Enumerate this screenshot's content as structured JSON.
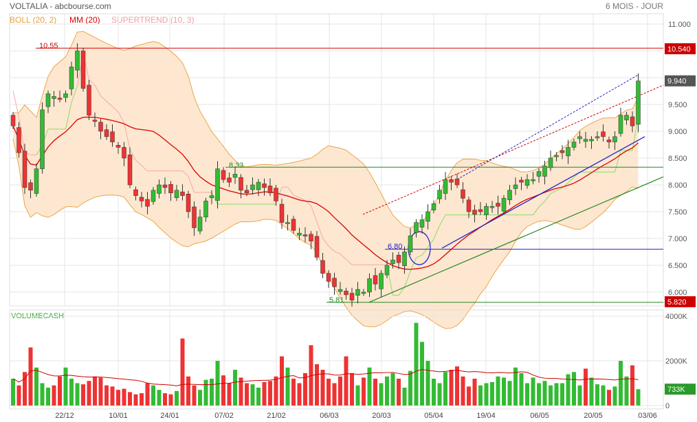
{
  "header": {
    "title": "VOLTALIA - abcbourse.com",
    "period": "6 MOIS - JOUR"
  },
  "legend": [
    {
      "label": "BOLL (20, 2)",
      "color": "#e8a040"
    },
    {
      "label": "MM (20)",
      "color": "#dd0000"
    },
    {
      "label": "SUPERTREND (10, 3)",
      "color": "#f0a0a0"
    }
  ],
  "volume_panel": {
    "label": "VOLUMECASH"
  },
  "colors": {
    "up": "#33bb33",
    "down": "#ee3333",
    "boll_fill": "#fde3c8",
    "boll_line": "#eca548",
    "mm": "#dd0000",
    "supertrend_up": "#88dd66",
    "supertrend_down": "#f4a8a8",
    "grid": "#e6e6e6",
    "hline_red": "#cc0000",
    "hline_green": "#228822",
    "trend_blue": "#2222cc"
  },
  "price_axis": {
    "ticks": [
      "11.000",
      "10.500",
      "10.000",
      "9.500",
      "9.000",
      "8.500",
      "8.000",
      "7.500",
      "7.000",
      "6.500",
      "6.000"
    ],
    "markers": [
      {
        "label": "10.540",
        "value": 10.54,
        "color": "#cc0000"
      },
      {
        "label": "9.940",
        "value": 9.94,
        "color": "#555555"
      },
      {
        "label": "5.820",
        "value": 5.82,
        "color": "#cc0000"
      }
    ]
  },
  "volume_axis": {
    "ticks": [
      "4000K",
      "2000K",
      "0"
    ],
    "marker": {
      "label": "733K",
      "value": 733,
      "color": "#2a9a2a"
    }
  },
  "annotations": {
    "h1": {
      "label": "10.55",
      "value": 10.55
    },
    "h2": {
      "label": "8.33",
      "value": 8.33
    },
    "h3": {
      "label": "6.80",
      "value": 6.8
    },
    "h4": {
      "label": "5.81",
      "value": 5.81
    }
  },
  "chart_data": {
    "type": "candlestick",
    "title": "VOLTALIA - abcbourse.com",
    "ylim": [
      5.8,
      11.2
    ],
    "volume_ylim": [
      0,
      4000
    ],
    "x_labels": [
      "22/12",
      "10/01",
      "24/01",
      "07/02",
      "21/02",
      "06/03",
      "20/03",
      "05/04",
      "19/04",
      "06/05",
      "20/05",
      "03/06"
    ],
    "close": [
      9.1,
      8.6,
      7.95,
      7.9,
      8.3,
      9.4,
      9.7,
      9.65,
      9.6,
      9.7,
      10.2,
      10.5,
      9.8,
      9.3,
      9.2,
      9.0,
      8.9,
      8.8,
      8.7,
      8.5,
      8.0,
      7.8,
      7.7,
      7.6,
      7.9,
      8.0,
      7.95,
      7.85,
      7.9,
      7.8,
      7.5,
      7.2,
      7.4,
      7.7,
      7.8,
      8.3,
      8.1,
      8.05,
      8.2,
      7.9,
      7.85,
      8.0,
      8.05,
      7.95,
      7.85,
      7.7,
      7.3,
      7.3,
      7.15,
      7.1,
      7.05,
      6.95,
      6.65,
      6.35,
      6.2,
      6.1,
      6.05,
      5.95,
      5.85,
      6.05,
      6.0,
      6.25,
      6.15,
      6.35,
      6.5,
      6.6,
      6.55,
      6.75,
      7.05,
      7.3,
      7.35,
      7.5,
      7.65,
      7.9,
      8.1,
      8.05,
      8.0,
      7.75,
      7.5,
      7.45,
      7.5,
      7.6,
      7.6,
      7.6,
      7.75,
      7.9,
      8.0,
      8.05,
      8.1,
      8.1,
      8.25,
      8.35,
      8.5,
      8.55,
      8.6,
      8.7,
      8.8,
      8.9,
      8.85,
      8.85,
      8.9,
      8.9,
      8.8,
      8.9,
      9.3,
      9.3,
      9.1,
      9.94
    ],
    "volume_series": [
      1200,
      900,
      1500,
      2600,
      1700,
      1000,
      800,
      900,
      1300,
      1700,
      1200,
      1000,
      950,
      1100,
      1300,
      1250,
      900,
      850,
      700,
      750,
      600,
      500,
      550,
      1000,
      900,
      700,
      550,
      500,
      650,
      3000,
      1300,
      900,
      700,
      1150,
      1200,
      2000,
      1350,
      1000,
      1600,
      1250,
      1000,
      950,
      800,
      1050,
      1100,
      1300,
      2200,
      1700,
      1200,
      1000,
      1450,
      2700,
      1850,
      1600,
      1200,
      1000,
      1300,
      2200,
      1450,
      900,
      1250,
      1700,
      1200,
      1000,
      1300,
      1450,
      1200,
      800,
      1550,
      3700,
      2850,
      2000,
      1200,
      1000,
      1500,
      1600,
      1750,
      1300,
      850,
      1200,
      900,
      1000,
      1050,
      1300,
      1250,
      1100,
      1700,
      1450,
      1000,
      1250,
      1000,
      1100,
      900,
      1000,
      1000,
      1400,
      1500,
      900,
      1650,
      1250,
      950,
      900,
      700,
      850,
      2000,
      1300,
      1800,
      730
    ]
  }
}
